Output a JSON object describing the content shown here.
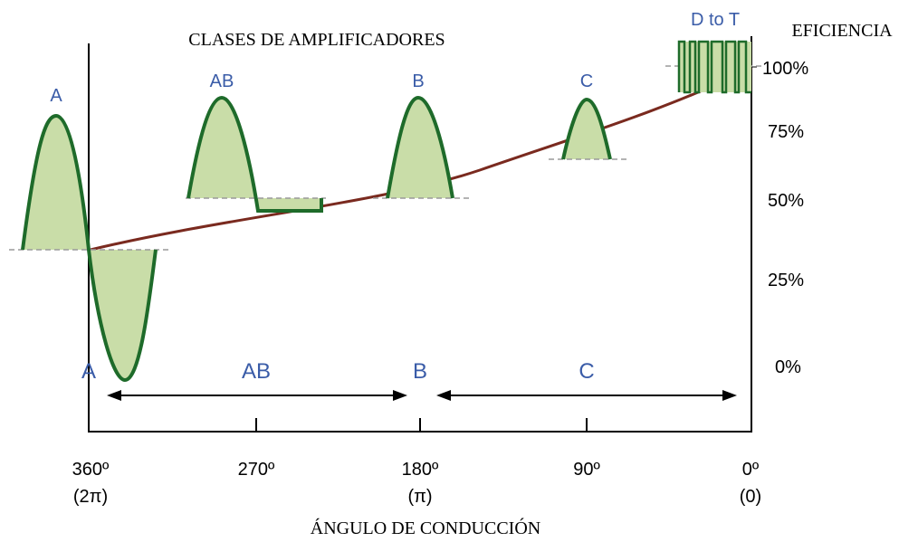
{
  "title": "CLASES DE AMPLIFICADORES",
  "efficiency_label": "EFICIENCIA",
  "xlabel": "ÁNGULO DE CONDUCCIÓN",
  "efficiency_ticks": [
    "100%",
    "75%",
    "50%",
    "25%",
    "0%"
  ],
  "angle_ticks": [
    {
      "deg": "360º",
      "rad": "(2π)"
    },
    {
      "deg": "270º",
      "rad": ""
    },
    {
      "deg": "180º",
      "rad": "(π)"
    },
    {
      "deg": "90º",
      "rad": ""
    },
    {
      "deg": "0º",
      "rad": "(0)"
    }
  ],
  "class_labels_top": [
    "A",
    "AB",
    "B",
    "C",
    "D to T"
  ],
  "class_labels_bottom": [
    "A",
    "AB",
    "B",
    "C"
  ],
  "colors": {
    "axis": "#000000",
    "curve": "#7a2a1f",
    "wave_stroke": "#1e6b2a",
    "wave_fill": "#c9dda8",
    "label_blue": "#3a5ca8",
    "baseline": "#9a9a9a"
  }
}
